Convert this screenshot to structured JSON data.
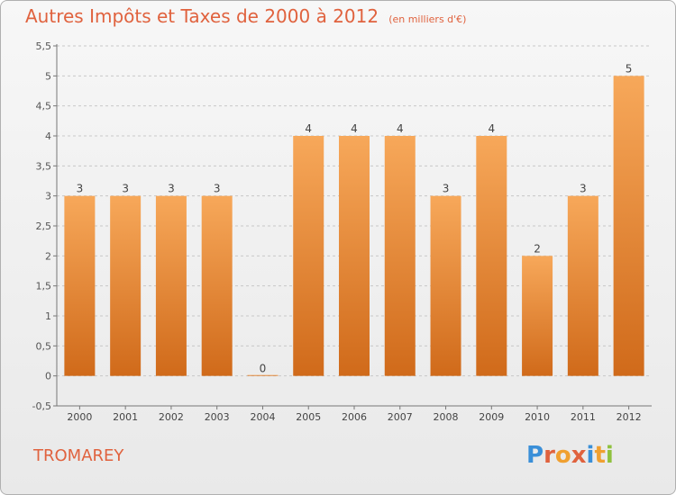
{
  "header": {
    "title": "Autres Impôts et Taxes de 2000 à 2012",
    "subtitle": "(en milliers d'€)"
  },
  "footer": {
    "commune": "TROMAREY",
    "logo_text": "Proxiti",
    "logo_colors": [
      "#3a8fd8",
      "#e0623e",
      "#f0a030",
      "#e0623e",
      "#3a8fd8",
      "#f0a030",
      "#8fc13e"
    ]
  },
  "colors": {
    "bar_top": "#f7a85a",
    "bar_bottom": "#d06a1a",
    "title": "#e0623e",
    "grid": "#c8c8c8"
  },
  "chart_data": {
    "type": "bar",
    "categories": [
      "2000",
      "2001",
      "2002",
      "2003",
      "2004",
      "2005",
      "2006",
      "2007",
      "2008",
      "2009",
      "2010",
      "2011",
      "2012"
    ],
    "values": [
      3,
      3,
      3,
      3,
      0,
      4,
      4,
      4,
      3,
      4,
      2,
      3,
      5
    ],
    "value_labels": [
      "3",
      "3",
      "3",
      "3",
      "0",
      "4",
      "4",
      "4",
      "3",
      "4",
      "2",
      "3",
      "5"
    ],
    "ylim": [
      -0.5,
      5.5
    ],
    "yticks": [
      "-0,5",
      "0",
      "0,5",
      "1",
      "1,5",
      "2",
      "2,5",
      "3",
      "3,5",
      "4",
      "4,5",
      "5",
      "5,5"
    ],
    "ytick_values": [
      -0.5,
      0,
      0.5,
      1,
      1.5,
      2,
      2.5,
      3,
      3.5,
      4,
      4.5,
      5,
      5.5
    ],
    "grid": true,
    "xlabel": "",
    "ylabel": ""
  }
}
